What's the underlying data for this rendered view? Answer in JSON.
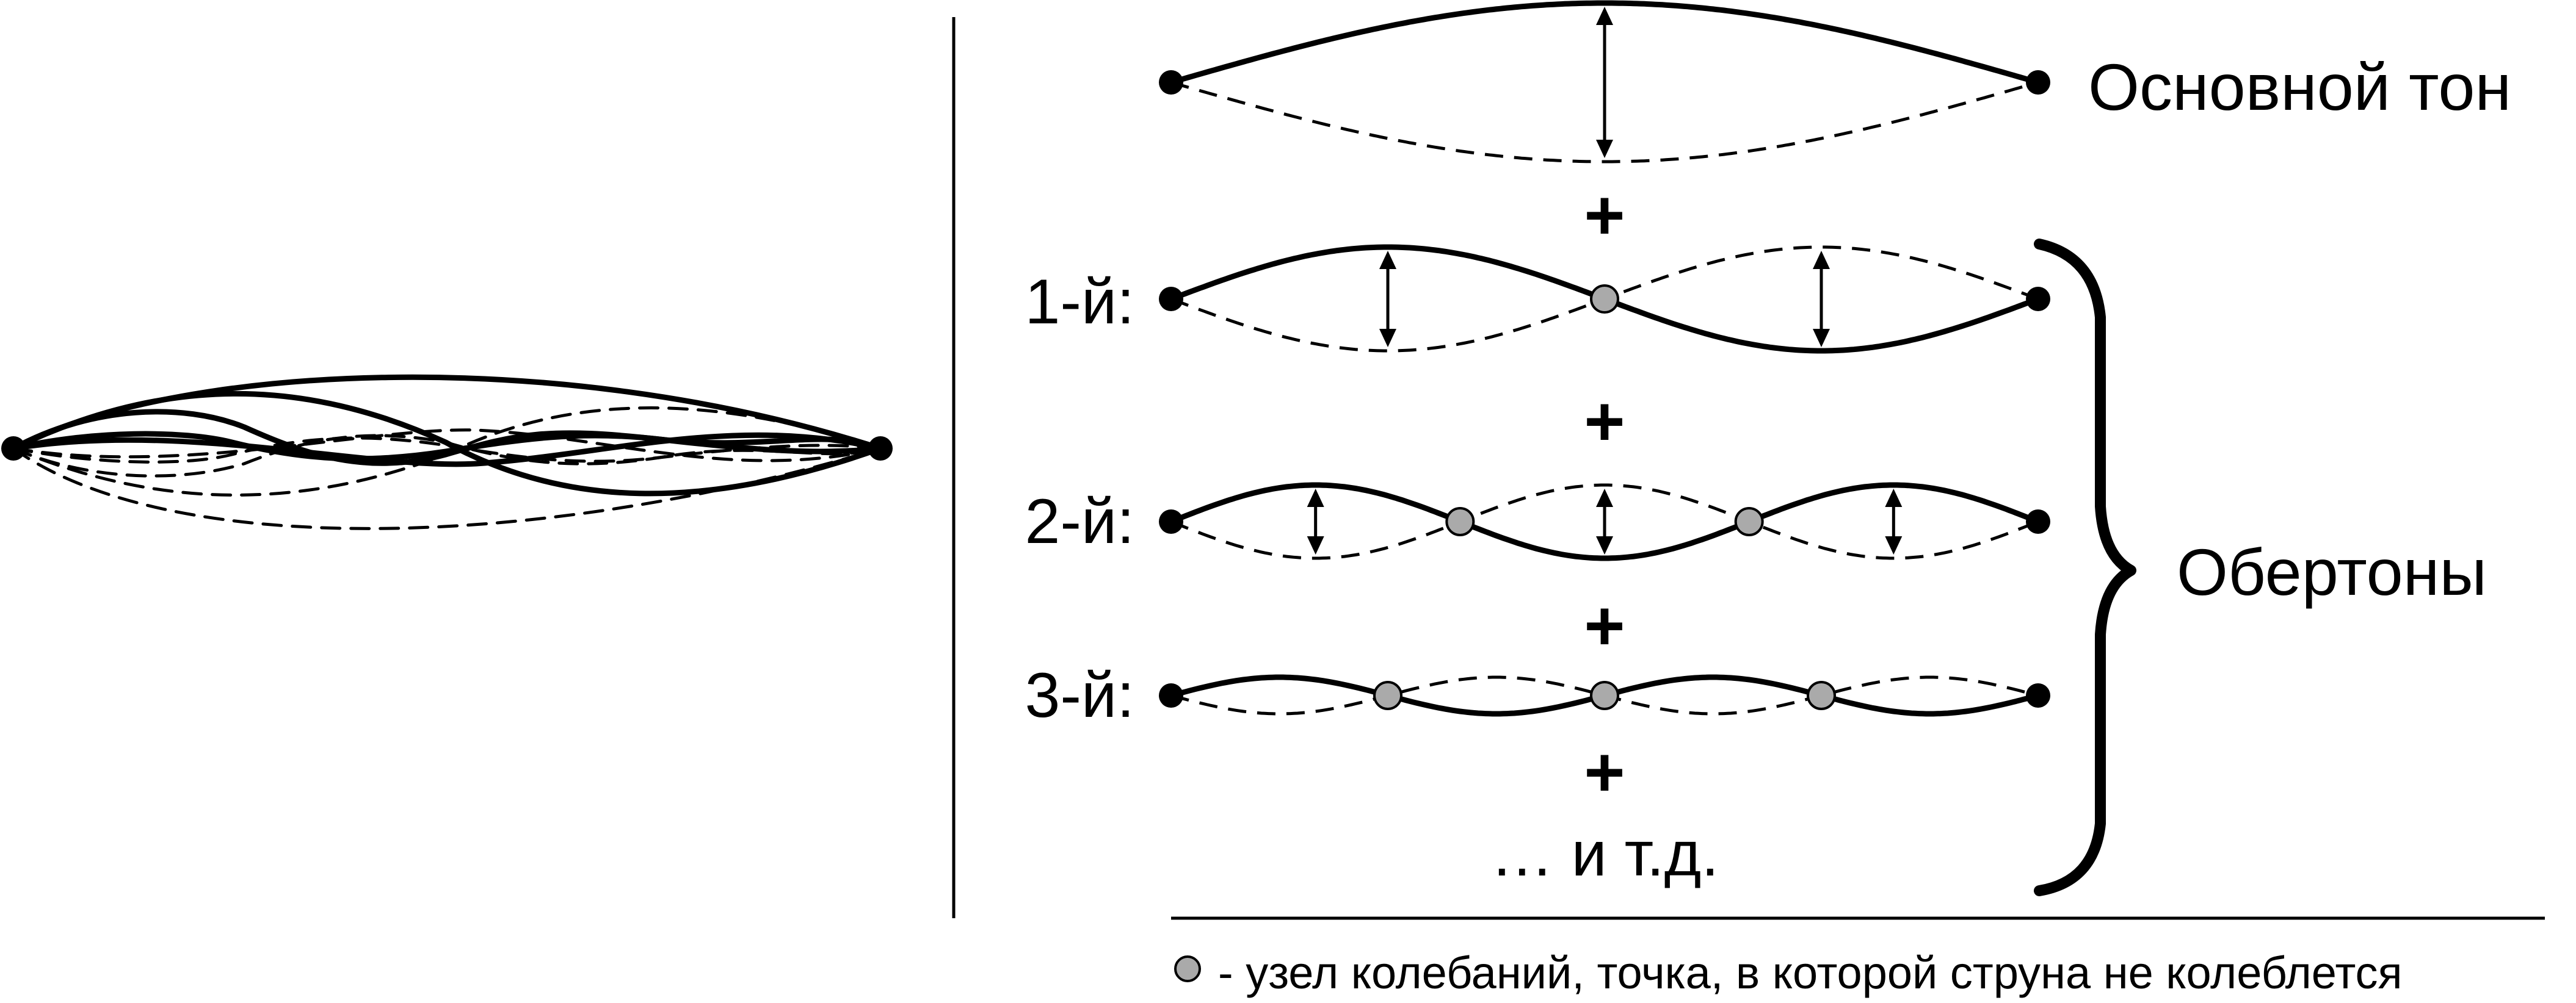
{
  "labels": {
    "fundamental": "Основной тон",
    "overtones": "Обертоны",
    "harmonic_1": "1-й:",
    "harmonic_2": "2-й:",
    "harmonic_3": "3-й:",
    "plus": "+",
    "etc": "… и т.д.",
    "legend_text": "- узел колебаний, точка, в которой струна не колеблется"
  },
  "modes": [
    {
      "loops": 1
    },
    {
      "loops": 2
    },
    {
      "loops": 3
    },
    {
      "loops": 4
    }
  ],
  "colors": {
    "line": "#000000",
    "node_fill": "#aaaaaa",
    "background": "#ffffff"
  }
}
